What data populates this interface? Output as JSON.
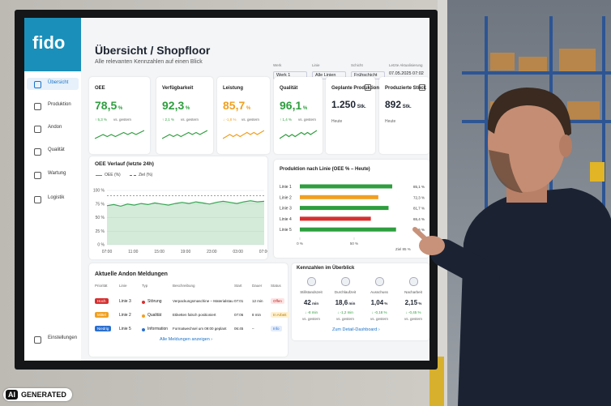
{
  "logo": "fido",
  "header": {
    "title": "Übersicht / Shopfloor",
    "subtitle": "Alle relevanten Kennzahlen auf einen Blick"
  },
  "filters": [
    {
      "label": "Werk",
      "value": "Werk 1"
    },
    {
      "label": "Linie",
      "value": "Alle Linien"
    },
    {
      "label": "Schicht",
      "value": "Frühschicht"
    },
    {
      "label": "Letzte Aktualisierung",
      "value": "07.05.2025 07:02"
    }
  ],
  "sidebar": [
    "Übersicht",
    "Produktion",
    "Andon",
    "Qualität",
    "Wartung",
    "Logistik",
    "Einstellungen"
  ],
  "kpis": [
    {
      "title": "OEE",
      "value": "78,5",
      "unit": "%",
      "change": "↑ 5,3 %",
      "note": "vs. gestern",
      "color": "#2e9e3e"
    },
    {
      "title": "Verfügbarkeit",
      "value": "92,3",
      "unit": "%",
      "change": "↑ 2,1 %",
      "note": "vs. gestern",
      "color": "#2e9e3e"
    },
    {
      "title": "Leistung",
      "value": "85,7",
      "unit": "%",
      "change": "↓ -1,8 %",
      "note": "vs. gestern",
      "color": "#f0a020"
    },
    {
      "title": "Qualität",
      "value": "96,1",
      "unit": "%",
      "change": "↑ 1,4 %",
      "note": "vs. gestern",
      "color": "#2e9e3e"
    },
    {
      "title": "Geplante Produktion",
      "value": "1.250",
      "unit": "Stk.",
      "note": "Heute",
      "color": "#1d2430"
    },
    {
      "title": "Produzierte Stück",
      "value": "892",
      "unit": "Stk.",
      "note": "Heute",
      "color": "#1d2430"
    }
  ],
  "oee_chart": {
    "title": "OEE Verlauf (letzte 24h)",
    "legend": [
      "OEE (%)",
      "Ziel (%)"
    ],
    "ylim": [
      0,
      100
    ],
    "yticks": [
      {
        "value": 0,
        "label": "0 %"
      },
      {
        "value": 25,
        "label": "25 %"
      },
      {
        "value": 50,
        "label": "50 %"
      },
      {
        "value": 75,
        "label": "75 %"
      },
      {
        "value": 100,
        "label": "100 %"
      }
    ],
    "xticks": [
      "07:00",
      "11:00",
      "15:00",
      "19:00",
      "23:00",
      "03:00",
      "07:00"
    ],
    "values": [
      72,
      74,
      71,
      75,
      73,
      76,
      74,
      77,
      75,
      73,
      76,
      78,
      76,
      79,
      77,
      75,
      78,
      80,
      78,
      76,
      79,
      81,
      79,
      80
    ],
    "target": 90,
    "color": "#3aa655"
  },
  "line_chart": {
    "title": "Produktion nach Linie (OEE % – Heute)",
    "categories": [
      "Linie 1",
      "Linie 2",
      "Linie 3",
      "Linie 4",
      "Linie 5"
    ],
    "values": [
      85.1,
      72.3,
      81.7,
      65.4,
      88.6
    ],
    "value_labels": [
      "85,1 %",
      "72,3 %",
      "81,7 %",
      "65,4 %",
      "88,6 %"
    ],
    "colors": [
      "#2e9e3e",
      "#f0a020",
      "#2e9e3e",
      "#d63030",
      "#2e9e3e"
    ],
    "xlim": [
      0,
      100
    ],
    "xticks": [
      {
        "value": 0,
        "label": "0 %"
      },
      {
        "value": 50,
        "label": "50 %"
      }
    ],
    "target_label": "Ziel 85 %"
  },
  "andon": {
    "title": "Aktuelle Andon Meldungen",
    "headers": [
      "Priorität",
      "Linie",
      "Typ",
      "Beschreibung",
      "Start",
      "Dauer",
      "Status"
    ],
    "rows": [
      [
        "Hoch",
        "Linie 3",
        "Störung",
        "Verpackungsmaschine – Materialstau",
        "07:01",
        "12 min",
        "Offen"
      ],
      [
        "Mittel",
        "Linie 2",
        "Qualität",
        "Etiketten falsch positioniert",
        "07:06",
        "8 min",
        "In Arbeit"
      ],
      [
        "Niedrig",
        "Linie 5",
        "Information",
        "Formatwechsel um 09:00 geplant",
        "06:45",
        "–",
        "Info"
      ]
    ],
    "link": "Alle Meldungen anzeigen ›"
  },
  "overview": {
    "title": "Kennzahlen im Überblick",
    "items": [
      {
        "label": "Stillstandszeit",
        "value": "42",
        "unit": "min",
        "change": "↓ -8 min",
        "note": "vs. gestern"
      },
      {
        "label": "Durchlaufzeit",
        "value": "18,6",
        "unit": "min",
        "change": "↓ -1,2 min",
        "note": "vs. gestern"
      },
      {
        "label": "Ausschuss",
        "value": "1,04",
        "unit": "%",
        "change": "↓ -0,18 %",
        "note": "vs. gestern"
      },
      {
        "label": "Nacharbeit",
        "value": "2,15",
        "unit": "%",
        "change": "↓ -0,45 %",
        "note": "vs. gestern"
      }
    ],
    "link": "Zum Detail-Dashboard ›"
  },
  "badge": {
    "icon": "AI",
    "text": "GENERATED"
  }
}
